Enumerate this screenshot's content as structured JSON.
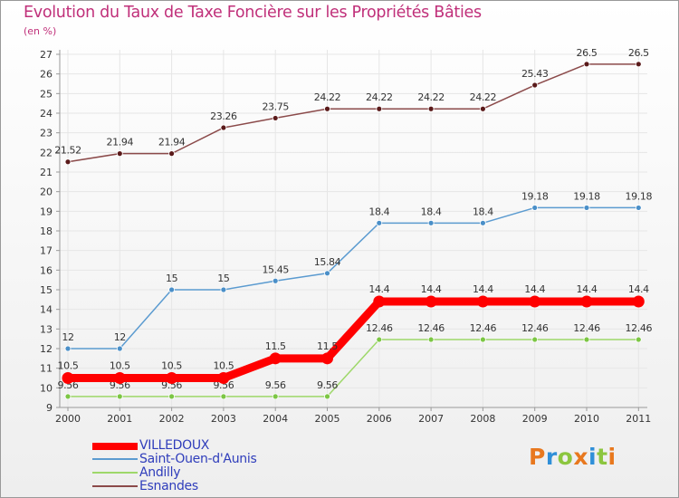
{
  "title": "Evolution du Taux de Taxe Foncière sur les Propriétés Bâties",
  "subtitle": "(en %)",
  "logo": {
    "letters": [
      "P",
      "r",
      "o",
      "x",
      "i",
      "t",
      "i"
    ],
    "colors": [
      "#e8781e",
      "#2f8fd8",
      "#8cc63f",
      "#e8781e",
      "#2f8fd8",
      "#8cc63f",
      "#e8781e"
    ]
  },
  "chart_data": {
    "type": "line",
    "title": "Evolution du Taux de Taxe Foncière sur les Propriétés Bâties",
    "ylabel": "(en %)",
    "categories": [
      "2000",
      "2001",
      "2002",
      "2003",
      "2004",
      "2005",
      "2006",
      "2007",
      "2008",
      "2009",
      "2010",
      "2011"
    ],
    "ylim": [
      9,
      27
    ],
    "yticks": [
      "9",
      "10",
      "11",
      "12",
      "13",
      "14",
      "15",
      "16",
      "17",
      "18",
      "19",
      "20",
      "21",
      "22",
      "23",
      "24",
      "25",
      "26",
      "27"
    ],
    "series": [
      {
        "name": "Esnandes",
        "color": "#8b4a4a",
        "marker": "#5a1a1a",
        "values": [
          21.52,
          21.94,
          21.94,
          23.26,
          23.75,
          24.22,
          24.22,
          24.22,
          24.22,
          25.43,
          26.5,
          26.5
        ],
        "labels": [
          "21.52",
          "21.94",
          "21.94",
          "23.26",
          "23.75",
          "24.22",
          "24.22",
          "24.22",
          "24.22",
          "25.43",
          "26.5",
          "26.5"
        ]
      },
      {
        "name": "Saint-Ouen-d'Aunis",
        "color": "#5b9bd0",
        "marker": "#4a8fc8",
        "values": [
          12,
          12,
          15,
          15,
          15.45,
          15.84,
          18.4,
          18.4,
          18.4,
          19.18,
          19.18,
          19.18
        ],
        "labels": [
          "12",
          "12",
          "15",
          "15",
          "15.45",
          "15.84",
          "18.4",
          "18.4",
          "18.4",
          "19.18",
          "19.18",
          "19.18"
        ]
      },
      {
        "name": "Andilly",
        "color": "#9ed86a",
        "marker": "#7cc644",
        "values": [
          9.56,
          9.56,
          9.56,
          9.56,
          9.56,
          9.56,
          12.46,
          12.46,
          12.46,
          12.46,
          12.46,
          12.46
        ],
        "labels": [
          "9.56",
          "9.56",
          "9.56",
          "9.56",
          "9.56",
          "9.56",
          "12.46",
          "12.46",
          "12.46",
          "12.46",
          "12.46",
          "12.46"
        ]
      },
      {
        "name": "VILLEDOUX",
        "color": "#ff0000",
        "marker": "#ff0000",
        "values": [
          10.5,
          10.5,
          10.5,
          10.5,
          11.5,
          11.5,
          14.4,
          14.4,
          14.4,
          14.4,
          14.4,
          14.4
        ],
        "labels": [
          "10.5",
          "10.5",
          "10.5",
          "10.5",
          "11.5",
          "11.5",
          "14.4",
          "14.4",
          "14.4",
          "14.4",
          "14.4",
          "14.4"
        ]
      }
    ],
    "legend": [
      {
        "name": "VILLEDOUX",
        "color": "#ff0000",
        "thick": true
      },
      {
        "name": "Saint-Ouen-d'Aunis",
        "color": "#5b9bd0",
        "thick": false
      },
      {
        "name": "Andilly",
        "color": "#9ed86a",
        "thick": false
      },
      {
        "name": "Esnandes",
        "color": "#8b4a4a",
        "thick": false
      }
    ]
  }
}
